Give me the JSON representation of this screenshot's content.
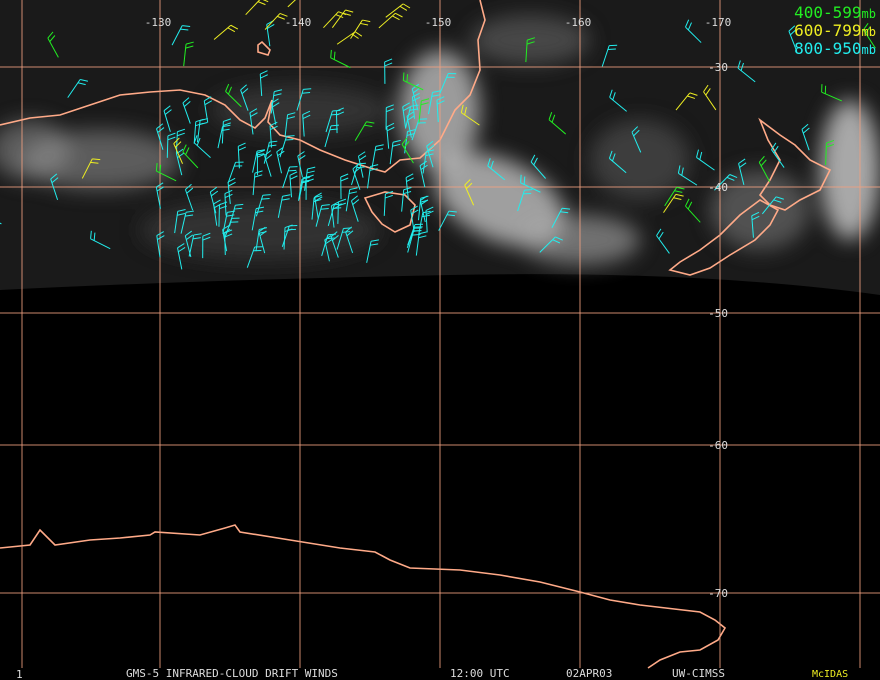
{
  "map": {
    "longitude_labels": [
      "-130",
      "-140",
      "-150",
      "-160",
      "-170"
    ],
    "latitude_labels": [
      "-30",
      "-40",
      "-50",
      "-60",
      "-70"
    ],
    "legend": [
      {
        "range": "400-599",
        "unit": "mb",
        "color": "#22ee22"
      },
      {
        "range": "600-799",
        "unit": "mb",
        "color": "#eeee22"
      },
      {
        "range": "800-950",
        "unit": "mb",
        "color": "#22eeee"
      }
    ],
    "footer": {
      "frame": "1",
      "product": "GMS-5 INFRARED-CLOUD DRIFT WINDS",
      "time": "12:00 UTC",
      "date": "02APR03",
      "source": "UW-CIMSS",
      "system": "McIDAS"
    }
  }
}
